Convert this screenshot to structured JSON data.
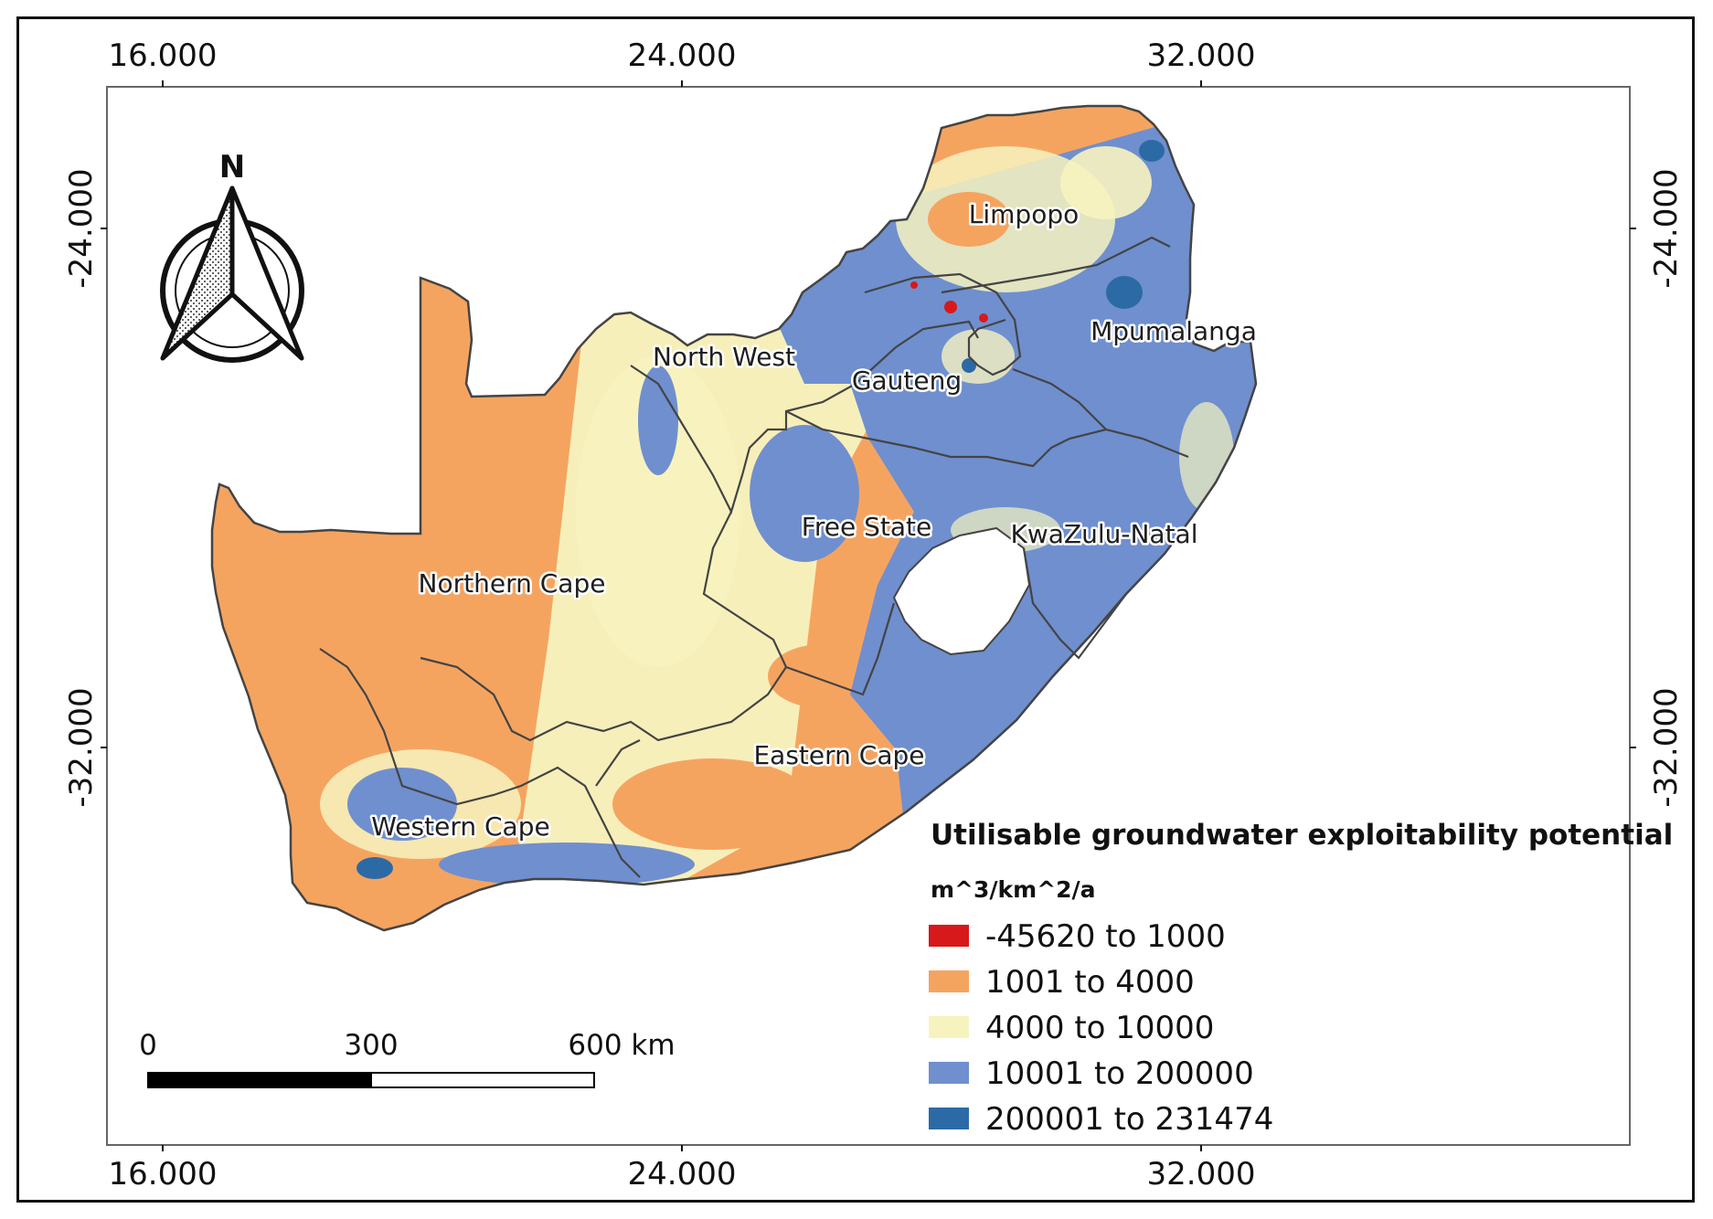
{
  "axes": {
    "x_ticks": [
      "16.000",
      "24.000",
      "32.000"
    ],
    "y_ticks": [
      "-24.000",
      "-32.000"
    ]
  },
  "north_arrow": {
    "label": "N",
    "icon": "north-arrow-icon"
  },
  "regions": [
    "Limpopo",
    "Mpumalanga",
    "North West",
    "Gauteng",
    "Free State",
    "KwaZulu-Natal",
    "Northern Cape",
    "Eastern Cape",
    "Western Cape"
  ],
  "legend": {
    "title": "Utilisable groundwater exploitability potential",
    "unit": "m^3/km^2/a",
    "classes": [
      {
        "label": "-45620 to 1000",
        "color": "#d7191c"
      },
      {
        "label": "1001 to 4000",
        "color": "#f5a460"
      },
      {
        "label": "4000 to 10000",
        "color": "#f7f3bf"
      },
      {
        "label": "10001 to 200000",
        "color": "#6f8fcf"
      },
      {
        "label": "200001 to 231474",
        "color": "#2c6aa6"
      }
    ]
  },
  "scale_bar": {
    "labels": [
      "0",
      "300",
      "600 km"
    ]
  }
}
